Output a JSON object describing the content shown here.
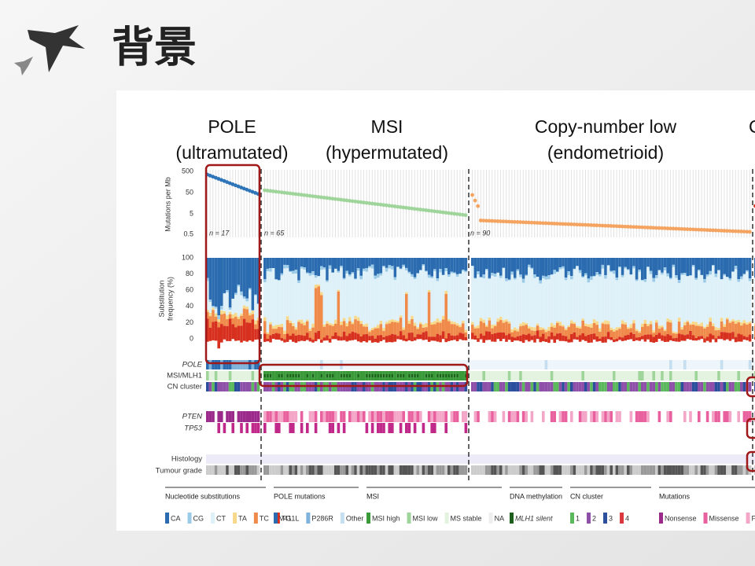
{
  "header": {
    "title": "背景"
  },
  "figure": {
    "groups": [
      {
        "line1": "POLE",
        "line2": "(ultramutated)"
      },
      {
        "line1": "MSI",
        "line2": "(hypermutated)"
      },
      {
        "line1": "Copy-number low",
        "line2": "(endometrioid)"
      },
      {
        "line1": "C"
      }
    ],
    "mutation_axis": {
      "label": "Mutations per Mb",
      "ticks": [
        "500",
        "50",
        "5",
        "0.5"
      ]
    },
    "n_labels": [
      "n = 17",
      "n = 65",
      "n = 90"
    ],
    "substitution_axis": {
      "label_line1": "Substitution",
      "label_line2": "frequency (%)",
      "ticks": [
        "100",
        "80",
        "60",
        "40",
        "20",
        "0"
      ]
    },
    "rows": [
      "POLE",
      "MSI/MLH1",
      "CN cluster",
      "PTEN",
      "TP53",
      "Histology",
      "Tumour grade"
    ],
    "legend": [
      {
        "title": "Nucleotide substitutions",
        "items": [
          {
            "label": "CA",
            "color": "#2b6cb0"
          },
          {
            "label": "CG",
            "color": "#9ccbe8"
          },
          {
            "label": "CT",
            "color": "#dff1f8"
          },
          {
            "label": "TA",
            "color": "#f7d98c"
          },
          {
            "label": "TC",
            "color": "#f08a4b"
          },
          {
            "label": "TG",
            "color": "#d7301f"
          }
        ]
      },
      {
        "title": "POLE mutations",
        "items": [
          {
            "label": "V411L",
            "color": "#2b6cb0"
          },
          {
            "label": "P286R",
            "color": "#7fb3dc"
          },
          {
            "label": "Other",
            "color": "#c6dff0"
          }
        ]
      },
      {
        "title": "MSI",
        "items": [
          {
            "label": "MSI high",
            "color": "#3a9a3a"
          },
          {
            "label": "MSI low",
            "color": "#9fd49a"
          },
          {
            "label": "MS stable",
            "color": "#e3f3df"
          },
          {
            "label": "NA",
            "color": "#eeeeee"
          }
        ]
      },
      {
        "title": "DNA methylation",
        "items": [
          {
            "label": "MLH1 silent",
            "color": "#1d5e1d"
          }
        ]
      },
      {
        "title": "CN cluster",
        "items": [
          {
            "label": "1",
            "color": "#5cb85c"
          },
          {
            "label": "2",
            "color": "#8e4fa8"
          },
          {
            "label": "3",
            "color": "#2b4f9c"
          },
          {
            "label": "4",
            "color": "#d9363e"
          }
        ]
      },
      {
        "title": "Mutations",
        "items": [
          {
            "label": "Nonsense",
            "color": "#9b2a8a"
          },
          {
            "label": "Missense",
            "color": "#e8609e"
          },
          {
            "label": "Frameshift",
            "color": "#f4a6c8"
          }
        ]
      }
    ]
  }
}
